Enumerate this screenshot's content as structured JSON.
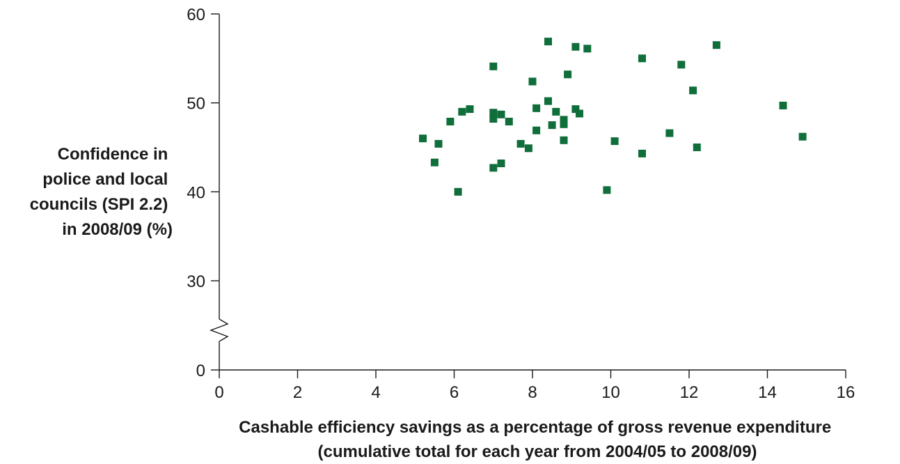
{
  "chart_data": {
    "type": "scatter",
    "ylabel_lines": [
      "Confidence in",
      "police and local",
      "councils (SPI 2.2)",
      "in 2008/09 (%)"
    ],
    "xlabel_lines": [
      "Cashable efficiency savings as a percentage of gross revenue expenditure",
      "(cumulative total for each year from 2004/05 to 2008/09)"
    ],
    "xlim": [
      0,
      16
    ],
    "ylim": [
      0,
      60
    ],
    "y_axis_break": [
      0,
      30
    ],
    "x_ticks": [
      "0",
      "2",
      "4",
      "6",
      "8",
      "10",
      "12",
      "14",
      "16"
    ],
    "y_ticks": [
      "0",
      "30",
      "40",
      "50",
      "60"
    ],
    "marker": "square",
    "marker_color": "#0f6e3a",
    "grid": false,
    "legend": "none",
    "series": [
      {
        "points": [
          [
            5.2,
            46.0
          ],
          [
            5.5,
            43.3
          ],
          [
            5.6,
            45.4
          ],
          [
            5.9,
            47.9
          ],
          [
            6.1,
            40.0
          ],
          [
            6.2,
            49.0
          ],
          [
            6.4,
            49.3
          ],
          [
            7.0,
            54.1
          ],
          [
            7.0,
            48.9
          ],
          [
            7.0,
            48.2
          ],
          [
            7.0,
            42.7
          ],
          [
            7.2,
            48.7
          ],
          [
            7.2,
            43.2
          ],
          [
            7.4,
            47.9
          ],
          [
            7.7,
            45.4
          ],
          [
            7.9,
            44.9
          ],
          [
            8.0,
            52.4
          ],
          [
            8.1,
            49.4
          ],
          [
            8.1,
            46.9
          ],
          [
            8.4,
            56.9
          ],
          [
            8.4,
            50.2
          ],
          [
            8.5,
            47.5
          ],
          [
            8.6,
            49.0
          ],
          [
            8.8,
            48.1
          ],
          [
            8.8,
            47.6
          ],
          [
            8.8,
            45.8
          ],
          [
            8.9,
            53.2
          ],
          [
            9.1,
            56.3
          ],
          [
            9.1,
            49.3
          ],
          [
            9.2,
            48.8
          ],
          [
            9.4,
            56.1
          ],
          [
            9.9,
            40.2
          ],
          [
            10.1,
            45.7
          ],
          [
            10.8,
            55.0
          ],
          [
            10.8,
            44.3
          ],
          [
            11.5,
            46.6
          ],
          [
            11.8,
            54.3
          ],
          [
            12.1,
            51.4
          ],
          [
            12.2,
            45.0
          ],
          [
            12.7,
            56.5
          ],
          [
            14.4,
            49.7
          ],
          [
            14.9,
            46.2
          ]
        ]
      }
    ]
  }
}
